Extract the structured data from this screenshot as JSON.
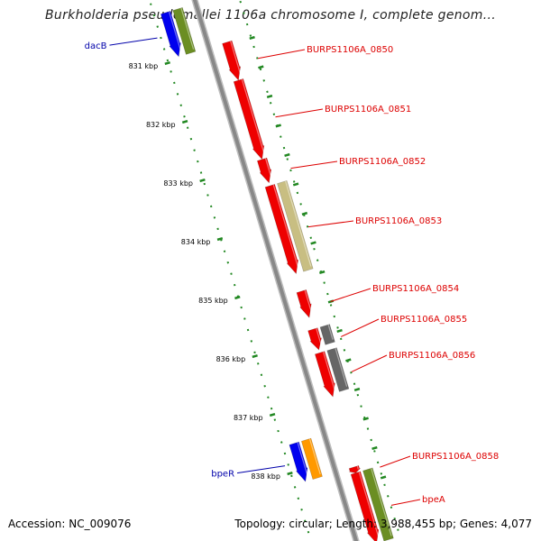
{
  "title": "Burkholderia pseudomallei 1106a chromosome I, complete genom...",
  "footer": {
    "accession": "Accession: NC_009076",
    "topology": "Topology: circular; Length: 3,988,455 bp; Genes: 4,077"
  },
  "colors": {
    "backbone": "#888888",
    "tick": "#228822",
    "locus_label": "#dd0000",
    "named_label": "#0000aa",
    "red": "#ee0000",
    "tan": "#c8be82",
    "gray": "#666666",
    "orange": "#ff9900",
    "blue": "#0000ee",
    "green": "#6b8e23"
  },
  "ticks": [
    "831 kbp",
    "832 kbp",
    "833 kbp",
    "834 kbp",
    "835 kbp",
    "836 kbp",
    "837 kbp",
    "838 kbp"
  ],
  "genes": [
    {
      "label": "dacB",
      "start_kbp": 830.2,
      "end_kbp": 830.95,
      "color": "green",
      "track": -1
    },
    {
      "label": "",
      "start_kbp": 830.2,
      "end_kbp": 830.95,
      "color": "blue",
      "track": -2
    },
    {
      "label": "BURPS1106A_0850",
      "start_kbp": 830.95,
      "end_kbp": 831.6,
      "color": "red",
      "track": 1
    },
    {
      "label": "BURPS1106A_0851",
      "start_kbp": 831.6,
      "end_kbp": 832.95,
      "color": "red",
      "track": 1
    },
    {
      "label": "BURPS1106A_0852",
      "start_kbp": 832.95,
      "end_kbp": 833.35,
      "color": "red",
      "track": 1
    },
    {
      "label": "BURPS1106A_0853",
      "start_kbp": 833.4,
      "end_kbp": 834.9,
      "color": "red",
      "track": 1
    },
    {
      "label": "",
      "start_kbp": 833.4,
      "end_kbp": 834.9,
      "color": "tan",
      "track": 2
    },
    {
      "label": "BURPS1106A_0854",
      "start_kbp": 835.2,
      "end_kbp": 835.65,
      "color": "red",
      "track": 1
    },
    {
      "label": "BURPS1106A_0855",
      "start_kbp": 835.85,
      "end_kbp": 836.2,
      "color": "red",
      "track": 1
    },
    {
      "label": "",
      "start_kbp": 835.85,
      "end_kbp": 836.15,
      "color": "gray",
      "track": 2
    },
    {
      "label": "BURPS1106A_0856",
      "start_kbp": 836.25,
      "end_kbp": 837.0,
      "color": "red",
      "track": 1
    },
    {
      "label": "",
      "start_kbp": 836.25,
      "end_kbp": 836.95,
      "color": "gray",
      "track": 2
    },
    {
      "label": "bpeR",
      "start_kbp": 837.55,
      "end_kbp": 838.2,
      "color": "orange",
      "track": -1
    },
    {
      "label": "",
      "start_kbp": 837.55,
      "end_kbp": 838.2,
      "color": "blue",
      "track": -2
    },
    {
      "label": "BURPS1106A_0858",
      "start_kbp": 838.2,
      "end_kbp": 838.3,
      "color": "red",
      "track": 1
    },
    {
      "label": "bpeA",
      "start_kbp": 838.3,
      "end_kbp": 839.5,
      "color": "red",
      "track": 1
    },
    {
      "label": "",
      "start_kbp": 838.3,
      "end_kbp": 839.5,
      "color": "green",
      "track": 2
    }
  ]
}
